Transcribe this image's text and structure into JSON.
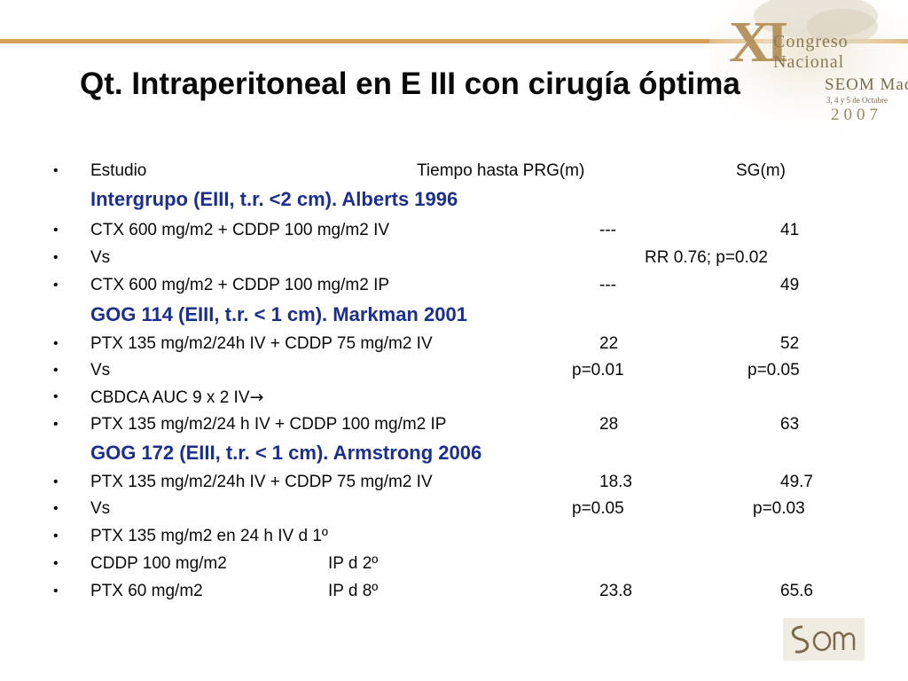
{
  "slide": {
    "title": "Qt. Intraperitoneal en E III con cirugía óptima",
    "logo": {
      "numeral": "XI",
      "line1": "Congreso",
      "line2": "Nacional",
      "line3": "SEOM Madrid",
      "line4": "3, 4 y 5 de Octubre",
      "year": "2007"
    },
    "footer_logo": "SEOM",
    "bullet_char": "•",
    "header": {
      "col1": "Estudio",
      "col2": "Tiempo hasta PRG(m)",
      "col3": "SG(m)"
    },
    "groups": [
      {
        "heading": "Intergrupo (EIII, t.r. <2 cm). Alberts 1996",
        "rows": [
          {
            "a": "CTX 600 mg/m2 + CDDP 100 mg/m2 IV",
            "b": "---",
            "c": "41"
          },
          {
            "a": "Vs",
            "b": "RR 0.76; p=0.02",
            "c": ""
          },
          {
            "a": "CTX 600 mg/m2 + CDDP 100 mg/m2 IP",
            "b": "---",
            "c": "49"
          }
        ]
      },
      {
        "heading": "GOG 114 (EIII, t.r. < 1 cm). Markman 2001",
        "rows": [
          {
            "a": "PTX 135 mg/m2/24h IV + CDDP 75 mg/m2 IV",
            "b": "22",
            "c": "52"
          },
          {
            "a": "Vs",
            "b": "p=0.01",
            "c": "p=0.05"
          },
          {
            "a": "CBDCA AUC 9 x 2 IV",
            "arrow": "→",
            "b": "",
            "c": ""
          },
          {
            "a": "PTX 135 mg/m2/24 h IV + CDDP 100 mg/m2 IP",
            "b": "28",
            "c": "63"
          }
        ]
      },
      {
        "heading": "GOG 172 (EIII, t.r. < 1 cm). Armstrong 2006",
        "rows": [
          {
            "a": "PTX 135 mg/m2/24h IV + CDDP 75 mg/m2 IV",
            "b": "18.3",
            "c": "49.7"
          },
          {
            "a": "Vs",
            "b": "p=0.05",
            "c": "p=0.03"
          },
          {
            "a": "PTX 135 mg/m2 en 24 h IV d 1º",
            "b": "",
            "c": ""
          },
          {
            "a": "CDDP 100 mg/m2",
            "a2": "IP d 2º",
            "b": "",
            "c": ""
          },
          {
            "a": "PTX 60 mg/m2",
            "a2": "IP d 8º",
            "b": "23.8",
            "c": "65.6"
          }
        ]
      }
    ]
  }
}
